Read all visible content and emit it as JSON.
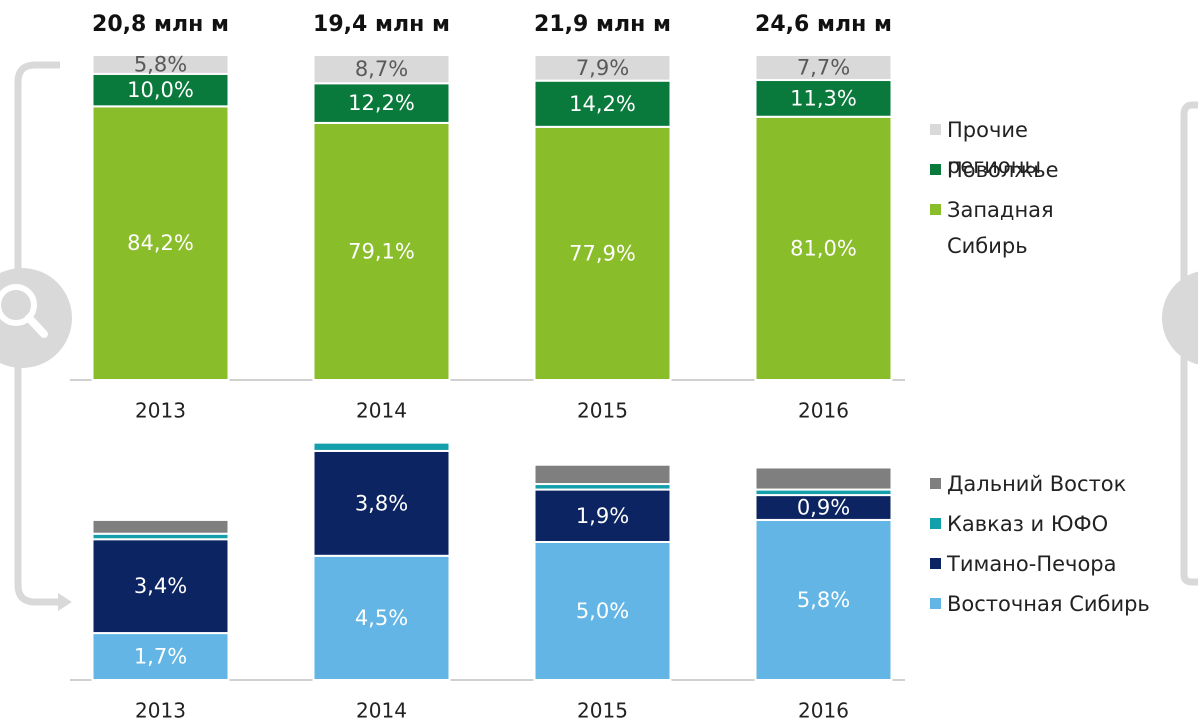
{
  "chart_data": [
    {
      "type": "bar",
      "stacked": true,
      "categories": [
        "2013",
        "2014",
        "2015",
        "2016"
      ],
      "totals": [
        "20,8 млн м",
        "19,4 млн м",
        "21,9 млн м",
        "24,6 млн м"
      ],
      "ylim": [
        0,
        100
      ],
      "series": [
        {
          "name": "Западная Сибирь",
          "color": "#8abd2a",
          "label_color": "#ffffff",
          "values": [
            84.2,
            79.1,
            77.9,
            81.0
          ],
          "value_labels": [
            "84,2%",
            "79,1%",
            "77,9%",
            "81,0%"
          ]
        },
        {
          "name": "Поволжье",
          "color": "#0a7a3c",
          "label_color": "#ffffff",
          "values": [
            10.0,
            12.2,
            14.2,
            11.3
          ],
          "value_labels": [
            "10,0%",
            "12,2%",
            "14,2%",
            "11,3%"
          ]
        },
        {
          "name": "Прочие регионы",
          "color": "#d9d9d9",
          "label_color": "#595959",
          "values": [
            5.8,
            8.7,
            7.9,
            7.7
          ],
          "value_labels": [
            "5,8%",
            "8,7%",
            "7,9%",
            "7,7%"
          ]
        }
      ]
    },
    {
      "type": "bar",
      "stacked": true,
      "categories": [
        "2013",
        "2014",
        "2015",
        "2016"
      ],
      "ylim": [
        0,
        9
      ],
      "series": [
        {
          "name": "Восточная Сибирь",
          "color": "#62b5e5",
          "label_color": "#ffffff",
          "values": [
            1.7,
            4.5,
            5.0,
            5.8
          ],
          "value_labels": [
            "1,7%",
            "4,5%",
            "5,0%",
            "5,8%"
          ]
        },
        {
          "name": "Тимано-Печора",
          "color": "#0c2461",
          "label_color": "#ffffff",
          "values": [
            3.4,
            3.8,
            1.9,
            0.9
          ],
          "value_labels": [
            "3,4%",
            "3,8%",
            "1,9%",
            "0,9%"
          ]
        },
        {
          "name": "Кавказ и ЮФО",
          "color": "#13a0aa",
          "values": [
            0.2,
            0.3,
            0.2,
            0.2
          ]
        },
        {
          "name": "Дальний Восток",
          "color": "#7f7f7f",
          "values": [
            0.5,
            0.0,
            0.7,
            0.8
          ]
        }
      ]
    }
  ]
}
